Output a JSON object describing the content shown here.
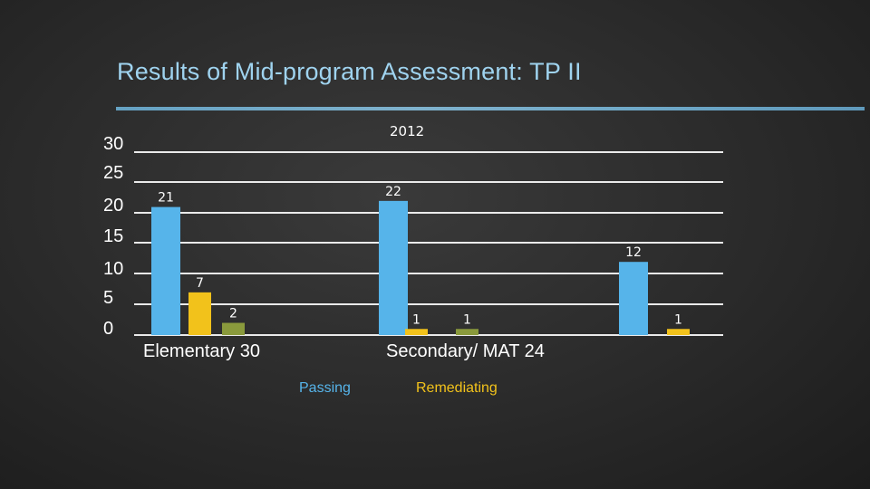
{
  "slide": {
    "title": "Results of Mid-program Assessment: TP II"
  },
  "chart_data": {
    "type": "bar",
    "series_title": "2012",
    "categories": [
      "Elementary 30",
      "Secondary/ MAT 24",
      ""
    ],
    "series": [
      {
        "name": "Passing",
        "values": [
          21,
          22,
          12
        ],
        "color": "#56b4ea"
      },
      {
        "name": "Remediating",
        "values": [
          7,
          1,
          1
        ],
        "color": "#f2c21b"
      },
      {
        "name": "",
        "values": [
          2,
          1,
          null
        ],
        "color": "#8a9a3c"
      }
    ],
    "y_ticks": [
      "30",
      "25",
      "20",
      "15",
      "10",
      "5",
      "0"
    ],
    "ylim": [
      0,
      30
    ],
    "grid": true,
    "legend": {
      "position": "bottom",
      "items": [
        "Passing",
        "Remediating"
      ]
    }
  },
  "colors": {
    "title": "#9fd3ef",
    "passing": "#56b4ea",
    "remediating": "#f2c21b",
    "third": "#8a9a3c",
    "text": "#ffffff",
    "gridline": "#ffffff"
  }
}
